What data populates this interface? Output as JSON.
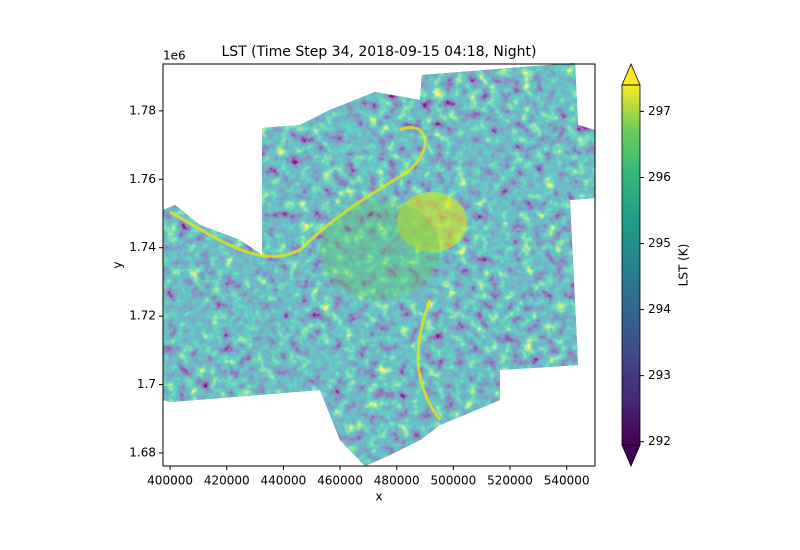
{
  "chart_data": {
    "type": "heatmap",
    "title": "LST (Time Step 34, 2018-09-15 04:18, Night)",
    "x_label": "x",
    "y_label": "y",
    "y_offset_label": "1e6",
    "xlim": [
      397500,
      550000
    ],
    "xticks": [
      400000,
      420000,
      440000,
      460000,
      480000,
      500000,
      520000,
      540000
    ],
    "ylim": [
      1.6762,
      1.7937
    ],
    "yticks": [
      1.68,
      1.7,
      1.72,
      1.74,
      1.76,
      1.78
    ],
    "colormap": "viridis",
    "colorbar": {
      "label": "LST (K)",
      "lim": [
        291.95,
        297.4
      ],
      "ticks": [
        292,
        293,
        294,
        295,
        296,
        297
      ],
      "extend": "both"
    }
  }
}
